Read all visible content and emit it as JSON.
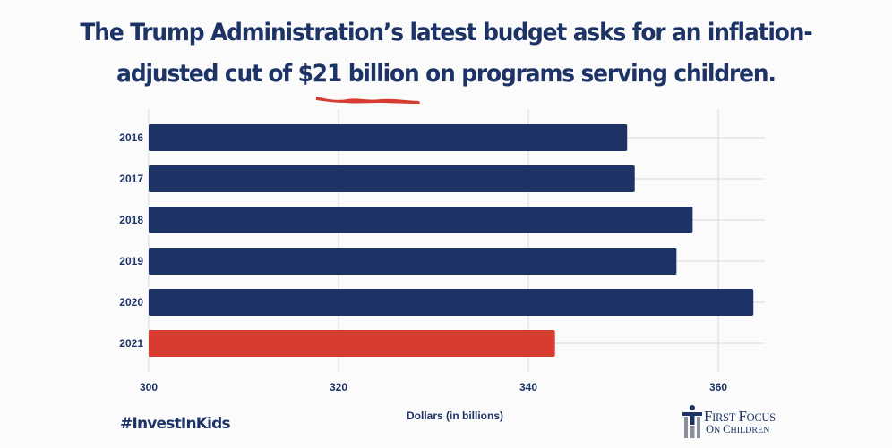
{
  "title_line1": "The Trump Administration’s latest budget asks for an inflation-",
  "title_line2": "adjusted cut of $21 billion on programs serving children.",
  "hashtag": "#InvestInKids",
  "logo": {
    "line1": "First Focus",
    "line2": "on Children",
    "icon": "people-logo-icon"
  },
  "colors": {
    "navy": "#1d3366",
    "red": "#d63c2f",
    "grid": "#dadada"
  },
  "chart_data": {
    "type": "bar",
    "orientation": "horizontal",
    "title": "The Trump Administration’s latest budget asks for an inflation-adjusted cut of $21 billion on programs serving children.",
    "xlabel": "Dollars (in billions)",
    "ylabel": "",
    "categories": [
      "2016",
      "2017",
      "2018",
      "2019",
      "2020",
      "2021"
    ],
    "values": [
      350.4,
      351.2,
      357.3,
      355.6,
      363.7,
      342.8
    ],
    "bar_colors": [
      "#1d3366",
      "#1d3366",
      "#1d3366",
      "#1d3366",
      "#1d3366",
      "#d63c2f"
    ],
    "xlim": [
      300,
      365
    ],
    "xticks": [
      300,
      320,
      340,
      360
    ],
    "grid": true,
    "legend": "none"
  }
}
